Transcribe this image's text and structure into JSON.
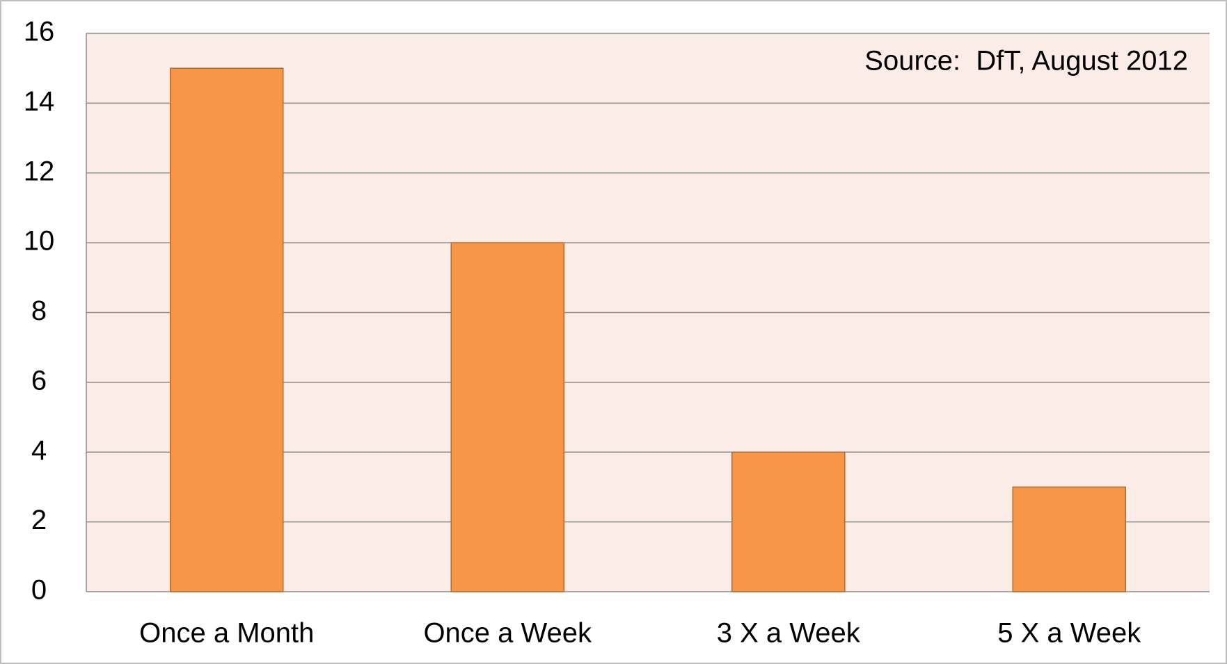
{
  "chart_data": {
    "type": "bar",
    "annotation": "Source:  DfT, August 2012",
    "categories": [
      "Once a Month",
      "Once a Week",
      "3 X a Week",
      "5 X a Week"
    ],
    "values": [
      15,
      10,
      4,
      3
    ],
    "color": "#f79646",
    "ylim": [
      0,
      16
    ],
    "yticks": [
      0,
      2,
      4,
      6,
      8,
      10,
      12,
      14,
      16
    ],
    "grid": true
  }
}
